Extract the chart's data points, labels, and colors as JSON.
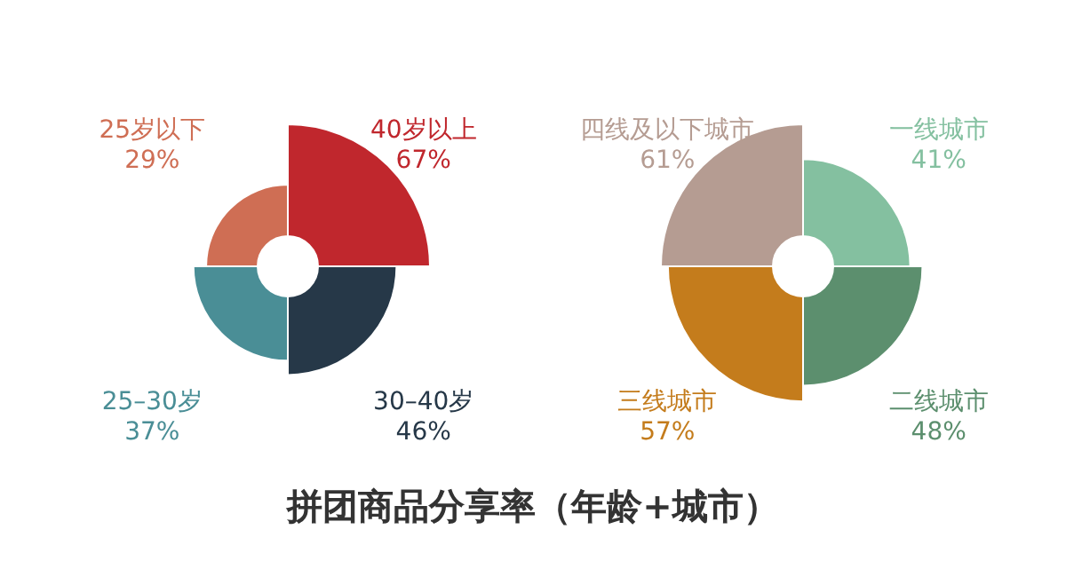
{
  "chart_data": [
    {
      "type": "other",
      "title": "拼团商品分享率（年龄+城市）",
      "categories": [
        "40岁以上",
        "30–40岁",
        "25–30岁",
        "25岁以下"
      ],
      "values": [
        67,
        46,
        37,
        29
      ],
      "value_labels": [
        "67%",
        "46%",
        "37%",
        "29%"
      ],
      "colors": [
        "#c0272d",
        "#263848",
        "#4a8e96",
        "#cf6e54"
      ]
    },
    {
      "type": "other",
      "categories": [
        "一线城市",
        "二线城市",
        "三线城市",
        "四线及以下城市"
      ],
      "values": [
        41,
        48,
        57,
        61
      ],
      "value_labels": [
        "41%",
        "48%",
        "57%",
        "61%"
      ],
      "colors": [
        "#84c0a0",
        "#5c8f6e",
        "#c47c1c",
        "#b59c92"
      ]
    }
  ]
}
